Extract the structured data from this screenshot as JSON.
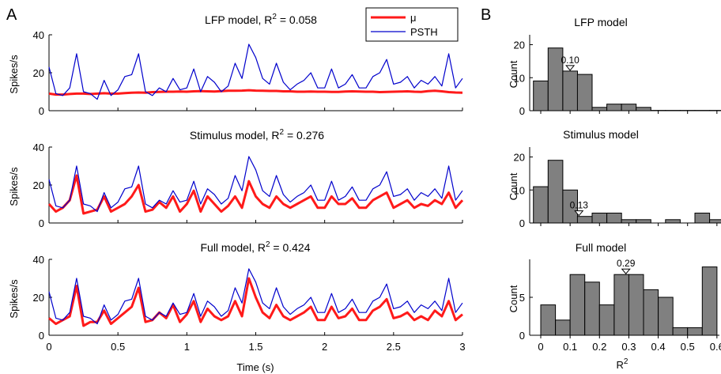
{
  "panel_labels": {
    "a": "A",
    "b": "B"
  },
  "colors": {
    "mu": "#ff1a1a",
    "psth": "#0000cc",
    "bar_fill": "#808080",
    "bar_edge": "#000000"
  },
  "legend": {
    "mu_label": "μ",
    "psth_label": "PSTH"
  },
  "chart_data": [
    {
      "type": "line",
      "title": "LFP model, R² = 0.058",
      "title_prefix": "LFP model, R",
      "title_value": " = 0.058",
      "xlabel": "Time (s)",
      "ylabel": "Spikes/s",
      "xlim": [
        0,
        3
      ],
      "ylim": [
        0,
        40
      ],
      "xticks": [
        "0",
        "0.5",
        "1",
        "1.5",
        "2",
        "2.5",
        "3"
      ],
      "yticks": [
        "0",
        "20",
        "40"
      ],
      "x": [
        0,
        0.05,
        0.1,
        0.15,
        0.2,
        0.25,
        0.3,
        0.35,
        0.4,
        0.45,
        0.5,
        0.55,
        0.6,
        0.65,
        0.7,
        0.75,
        0.8,
        0.85,
        0.9,
        0.95,
        1.0,
        1.05,
        1.1,
        1.15,
        1.2,
        1.25,
        1.3,
        1.35,
        1.4,
        1.45,
        1.5,
        1.55,
        1.6,
        1.65,
        1.7,
        1.75,
        1.8,
        1.85,
        1.9,
        1.95,
        2.0,
        2.05,
        2.1,
        2.15,
        2.2,
        2.25,
        2.3,
        2.35,
        2.4,
        2.45,
        2.5,
        2.55,
        2.6,
        2.65,
        2.7,
        2.75,
        2.8,
        2.85,
        2.9,
        2.95,
        3.0
      ],
      "series": [
        {
          "name": "μ",
          "values": [
            9,
            8.5,
            8.5,
            8.8,
            9,
            9,
            8.8,
            9,
            9.2,
            9,
            9,
            9.3,
            9.5,
            9.6,
            9.5,
            9.8,
            9.9,
            10,
            10,
            10.1,
            10,
            10.2,
            10.3,
            10.2,
            10.1,
            10.3,
            10.5,
            10.5,
            10.6,
            10.8,
            10.6,
            10.5,
            10.4,
            10.4,
            10.2,
            10.2,
            10,
            10,
            10.1,
            10,
            10,
            9.9,
            9.9,
            10.1,
            10.2,
            10.1,
            10,
            10,
            9.8,
            9.9,
            10,
            10.1,
            10.2,
            10,
            9.9,
            10.3,
            10.5,
            10.2,
            9.8,
            9.6,
            9.5
          ]
        },
        {
          "name": "PSTH",
          "values": [
            23,
            9,
            8,
            12,
            30,
            10,
            9,
            6,
            16,
            8,
            11,
            18,
            19,
            30,
            10,
            8,
            12,
            10,
            17,
            11,
            12,
            22,
            10,
            18,
            15,
            10,
            13,
            25,
            17,
            35,
            28,
            17,
            14,
            25,
            15,
            11,
            14,
            16,
            20,
            12,
            12,
            22,
            12,
            14,
            19,
            12,
            12,
            18,
            20,
            27,
            14,
            15,
            18,
            12,
            16,
            14,
            18,
            13,
            30,
            12,
            17
          ]
        }
      ]
    },
    {
      "type": "line",
      "title": "Stimulus model, R² = 0.276",
      "title_prefix": "Stimulus model, R",
      "title_value": " = 0.276",
      "xlabel": "Time (s)",
      "ylabel": "Spikes/s",
      "xlim": [
        0,
        3
      ],
      "ylim": [
        0,
        40
      ],
      "xticks": [
        "0",
        "0.5",
        "1",
        "1.5",
        "2",
        "2.5",
        "3"
      ],
      "yticks": [
        "0",
        "20",
        "40"
      ],
      "x": [
        0,
        0.05,
        0.1,
        0.15,
        0.2,
        0.25,
        0.3,
        0.35,
        0.4,
        0.45,
        0.5,
        0.55,
        0.6,
        0.65,
        0.7,
        0.75,
        0.8,
        0.85,
        0.9,
        0.95,
        1.0,
        1.05,
        1.1,
        1.15,
        1.2,
        1.25,
        1.3,
        1.35,
        1.4,
        1.45,
        1.5,
        1.55,
        1.6,
        1.65,
        1.7,
        1.75,
        1.8,
        1.85,
        1.9,
        1.95,
        2.0,
        2.05,
        2.1,
        2.15,
        2.2,
        2.25,
        2.3,
        2.35,
        2.4,
        2.45,
        2.5,
        2.55,
        2.6,
        2.65,
        2.7,
        2.75,
        2.8,
        2.85,
        2.9,
        2.95,
        3.0
      ],
      "series": [
        {
          "name": "μ",
          "values": [
            10,
            6,
            8,
            12,
            25,
            5,
            6,
            7,
            14,
            6,
            8,
            10,
            14,
            20,
            6,
            7,
            11,
            8,
            14,
            6,
            10,
            17,
            6,
            14,
            10,
            6,
            9,
            14,
            8,
            22,
            14,
            10,
            8,
            14,
            10,
            8,
            10,
            12,
            14,
            8,
            8,
            14,
            10,
            10,
            13,
            8,
            8,
            12,
            14,
            16,
            8,
            10,
            12,
            8,
            10,
            9,
            12,
            10,
            16,
            8,
            12
          ]
        },
        {
          "name": "PSTH",
          "values": [
            23,
            9,
            8,
            12,
            30,
            10,
            9,
            6,
            16,
            8,
            11,
            18,
            19,
            30,
            10,
            8,
            12,
            10,
            17,
            11,
            12,
            22,
            10,
            18,
            15,
            10,
            13,
            25,
            17,
            35,
            28,
            17,
            14,
            25,
            15,
            11,
            14,
            16,
            20,
            12,
            12,
            22,
            12,
            14,
            19,
            12,
            12,
            18,
            20,
            27,
            14,
            15,
            18,
            12,
            16,
            14,
            18,
            13,
            30,
            12,
            17
          ]
        }
      ]
    },
    {
      "type": "line",
      "title": "Full model, R² = 0.424",
      "title_prefix": "Full model, R",
      "title_value": " = 0.424",
      "xlabel": "Time (s)",
      "ylabel": "Spikes/s",
      "xlim": [
        0,
        3
      ],
      "ylim": [
        0,
        40
      ],
      "xticks": [
        "0",
        "0.5",
        "1",
        "1.5",
        "2",
        "2.5",
        "3"
      ],
      "yticks": [
        "0",
        "20",
        "40"
      ],
      "x": [
        0,
        0.05,
        0.1,
        0.15,
        0.2,
        0.25,
        0.3,
        0.35,
        0.4,
        0.45,
        0.5,
        0.55,
        0.6,
        0.65,
        0.7,
        0.75,
        0.8,
        0.85,
        0.9,
        0.95,
        1.0,
        1.05,
        1.1,
        1.15,
        1.2,
        1.25,
        1.3,
        1.35,
        1.4,
        1.45,
        1.5,
        1.55,
        1.6,
        1.65,
        1.7,
        1.75,
        1.8,
        1.85,
        1.9,
        1.95,
        2.0,
        2.05,
        2.1,
        2.15,
        2.2,
        2.25,
        2.3,
        2.35,
        2.4,
        2.45,
        2.5,
        2.55,
        2.6,
        2.65,
        2.7,
        2.75,
        2.8,
        2.85,
        2.9,
        2.95,
        3.0
      ],
      "series": [
        {
          "name": "μ",
          "values": [
            9,
            6,
            8,
            10,
            26,
            5,
            7,
            7,
            13,
            6,
            9,
            12,
            15,
            25,
            7,
            8,
            12,
            9,
            16,
            7,
            11,
            18,
            7,
            14,
            10,
            8,
            10,
            18,
            10,
            30,
            20,
            12,
            9,
            16,
            10,
            8,
            10,
            12,
            15,
            8,
            8,
            15,
            9,
            10,
            14,
            8,
            8,
            13,
            15,
            19,
            9,
            10,
            12,
            8,
            10,
            8,
            13,
            10,
            18,
            8,
            11
          ]
        },
        {
          "name": "PSTH",
          "values": [
            23,
            9,
            8,
            12,
            30,
            10,
            9,
            6,
            16,
            8,
            11,
            18,
            19,
            30,
            10,
            8,
            12,
            10,
            17,
            11,
            12,
            22,
            10,
            18,
            15,
            10,
            13,
            25,
            17,
            35,
            28,
            17,
            14,
            25,
            15,
            11,
            14,
            16,
            20,
            12,
            12,
            22,
            12,
            14,
            19,
            12,
            12,
            18,
            20,
            27,
            14,
            15,
            18,
            12,
            16,
            14,
            18,
            13,
            30,
            12,
            17
          ]
        }
      ]
    },
    {
      "type": "bar",
      "title": "LFP model",
      "xlabel": "R²",
      "ylabel": "Count",
      "xlim": [
        -0.025,
        0.625
      ],
      "ylim": [
        0,
        23
      ],
      "yticks": [
        "0",
        "10",
        "20"
      ],
      "bin_width": 0.05,
      "bin_centers": [
        0,
        0.05,
        0.1,
        0.15,
        0.2,
        0.25,
        0.3,
        0.35,
        0.4,
        0.45,
        0.5,
        0.55,
        0.6
      ],
      "values": [
        9,
        19,
        12,
        11,
        1,
        2,
        2,
        1,
        0.1,
        0.1,
        0.1,
        0.1,
        0.1
      ],
      "median": 0.1,
      "median_label": "0.10"
    },
    {
      "type": "bar",
      "title": "Stimulus model",
      "xlabel": "R²",
      "ylabel": "Count",
      "xlim": [
        -0.025,
        0.625
      ],
      "ylim": [
        0,
        23
      ],
      "yticks": [
        "0",
        "10",
        "20"
      ],
      "bin_width": 0.05,
      "bin_centers": [
        0,
        0.05,
        0.1,
        0.15,
        0.2,
        0.25,
        0.3,
        0.35,
        0.4,
        0.45,
        0.5,
        0.55,
        0.6
      ],
      "values": [
        11,
        19,
        10,
        2,
        3,
        3,
        1,
        1,
        0,
        1,
        0,
        3,
        1
      ],
      "median": 0.13,
      "median_label": "0.13"
    },
    {
      "type": "bar",
      "title": "Full model",
      "xlabel": "R²",
      "ylabel": "Count",
      "xlim": [
        -0.025,
        0.625
      ],
      "ylim": [
        0,
        10
      ],
      "yticks": [
        "0",
        "5"
      ],
      "xticks": [
        "0",
        "0.1",
        "0.2",
        "0.3",
        "0.4",
        "0.5",
        "0.6"
      ],
      "bin_width": 0.05,
      "bin_centers": [
        0.025,
        0.075,
        0.125,
        0.175,
        0.225,
        0.275,
        0.325,
        0.375,
        0.425,
        0.475,
        0.525,
        0.575,
        0.625
      ],
      "values": [
        4,
        2,
        8,
        7,
        4,
        8,
        8,
        6,
        5,
        1,
        1,
        9,
        0
      ],
      "median": 0.29,
      "median_label": "0.29"
    }
  ]
}
